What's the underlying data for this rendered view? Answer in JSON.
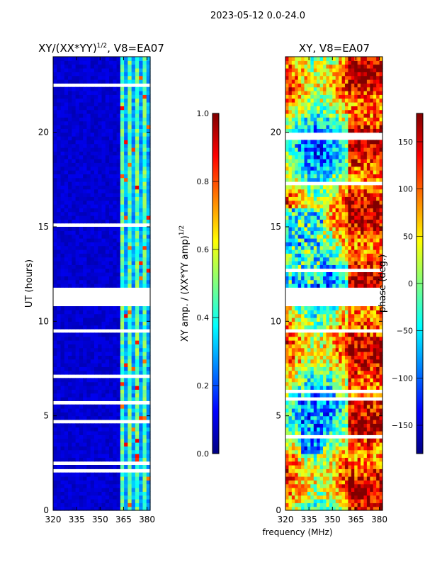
{
  "suptitle": "2023-05-12 0.0-24.0",
  "chart_data": [
    {
      "type": "heatmap",
      "title_main": "XY/(XX*YY)",
      "title_sup": "1/2",
      "title_suffix": ", V8=EA07",
      "xlabel": "",
      "ylabel": "UT (hours)",
      "xlim": [
        320,
        382
      ],
      "ylim": [
        0,
        24
      ],
      "xticks": [
        320,
        335,
        350,
        365,
        380
      ],
      "yticks": [
        0,
        5,
        10,
        15,
        20
      ],
      "colorbar": {
        "label_main": "XY amp. / (XX*YY amp)",
        "label_sup": "1/2",
        "vmin": 0.0,
        "vmax": 1.0,
        "ticks": [
          "0.0",
          "0.2",
          "0.4",
          "0.6",
          "0.8",
          "1.0"
        ],
        "tick_values": [
          0.0,
          0.2,
          0.4,
          0.6,
          0.8,
          1.0
        ],
        "colormap": "jet"
      },
      "dominant_value": 0.05,
      "bright_band_mhz": [
        362,
        381
      ],
      "blank_ut_range": [
        10.8,
        11.8
      ]
    },
    {
      "type": "heatmap",
      "title": "XY, V8=EA07",
      "xlabel": "frequency (MHz)",
      "ylabel": "",
      "xlim": [
        320,
        382
      ],
      "ylim": [
        0,
        24
      ],
      "xticks": [
        320,
        335,
        350,
        365,
        380
      ],
      "yticks": [
        0,
        5,
        10,
        15,
        20
      ],
      "colorbar": {
        "label": "phase (deg.)",
        "vmin": -180,
        "vmax": 180,
        "ticks": [
          "150",
          "100",
          "50",
          "0",
          "−50",
          "−100",
          "−150"
        ],
        "tick_values": [
          150,
          100,
          50,
          0,
          -50,
          -100,
          -150
        ],
        "colormap": "jet"
      },
      "blank_ut_range": [
        10.8,
        11.8
      ]
    }
  ]
}
